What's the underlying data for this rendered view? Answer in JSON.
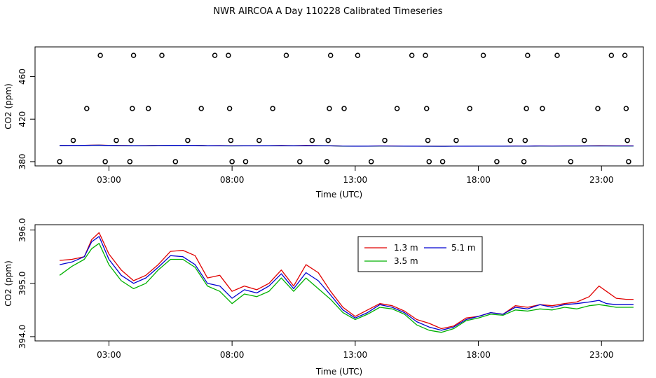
{
  "page_title": "NWR AIRCOA A  Day 110228  Calibrated Timeseries",
  "chart_data": [
    {
      "type": "scatter",
      "xlabel": "Time (UTC)",
      "ylabel": "CO2 (ppm)",
      "xlim": [
        0,
        24.7
      ],
      "ylim": [
        376,
        488
      ],
      "x_ticks": [
        3,
        8,
        13,
        18,
        23
      ],
      "x_tick_labels": [
        "03:00",
        "08:00",
        "13:00",
        "18:00",
        "23:00"
      ],
      "y_ticks": [
        380,
        420,
        460
      ],
      "y_tick_labels": [
        "380",
        "420",
        "460"
      ],
      "grid": false,
      "calibration_points": [
        {
          "x": 1.0,
          "y": 380
        },
        {
          "x": 1.55,
          "y": 400
        },
        {
          "x": 2.1,
          "y": 430
        },
        {
          "x": 2.65,
          "y": 480
        },
        {
          "x": 2.85,
          "y": 380
        },
        {
          "x": 3.3,
          "y": 400
        },
        {
          "x": 3.85,
          "y": 380
        },
        {
          "x": 3.9,
          "y": 400
        },
        {
          "x": 3.95,
          "y": 430
        },
        {
          "x": 4.0,
          "y": 480
        },
        {
          "x": 4.6,
          "y": 430
        },
        {
          "x": 5.15,
          "y": 480
        },
        {
          "x": 5.7,
          "y": 380
        },
        {
          "x": 6.2,
          "y": 400
        },
        {
          "x": 6.75,
          "y": 430
        },
        {
          "x": 7.3,
          "y": 480
        },
        {
          "x": 7.85,
          "y": 480
        },
        {
          "x": 7.9,
          "y": 430
        },
        {
          "x": 7.95,
          "y": 400
        },
        {
          "x": 8.0,
          "y": 380
        },
        {
          "x": 8.55,
          "y": 380
        },
        {
          "x": 9.1,
          "y": 400
        },
        {
          "x": 9.65,
          "y": 430
        },
        {
          "x": 10.2,
          "y": 480
        },
        {
          "x": 10.75,
          "y": 380
        },
        {
          "x": 11.25,
          "y": 400
        },
        {
          "x": 11.85,
          "y": 380
        },
        {
          "x": 11.9,
          "y": 400
        },
        {
          "x": 11.95,
          "y": 430
        },
        {
          "x": 12.0,
          "y": 480
        },
        {
          "x": 12.55,
          "y": 430
        },
        {
          "x": 13.1,
          "y": 480
        },
        {
          "x": 13.65,
          "y": 380
        },
        {
          "x": 14.2,
          "y": 400
        },
        {
          "x": 14.7,
          "y": 430
        },
        {
          "x": 15.3,
          "y": 480
        },
        {
          "x": 15.85,
          "y": 480
        },
        {
          "x": 15.9,
          "y": 430
        },
        {
          "x": 15.95,
          "y": 400
        },
        {
          "x": 16.0,
          "y": 380
        },
        {
          "x": 16.55,
          "y": 380
        },
        {
          "x": 17.1,
          "y": 400
        },
        {
          "x": 17.65,
          "y": 430
        },
        {
          "x": 18.2,
          "y": 480
        },
        {
          "x": 18.75,
          "y": 380
        },
        {
          "x": 19.3,
          "y": 400
        },
        {
          "x": 19.85,
          "y": 380
        },
        {
          "x": 19.9,
          "y": 400
        },
        {
          "x": 19.95,
          "y": 430
        },
        {
          "x": 20.0,
          "y": 480
        },
        {
          "x": 20.6,
          "y": 430
        },
        {
          "x": 21.2,
          "y": 480
        },
        {
          "x": 21.75,
          "y": 380
        },
        {
          "x": 22.3,
          "y": 400
        },
        {
          "x": 22.85,
          "y": 430
        },
        {
          "x": 23.4,
          "y": 480
        },
        {
          "x": 23.95,
          "y": 480
        },
        {
          "x": 24.0,
          "y": 430
        },
        {
          "x": 24.05,
          "y": 400
        },
        {
          "x": 24.1,
          "y": 380
        }
      ],
      "ambient_level": 395
    },
    {
      "type": "line",
      "xlabel": "Time (UTC)",
      "ylabel": "CO2 (ppm)",
      "xlim": [
        0,
        24.7
      ],
      "ylim": [
        393.92,
        396.1
      ],
      "x_ticks": [
        3,
        8,
        13,
        18,
        23
      ],
      "x_tick_labels": [
        "03:00",
        "08:00",
        "13:00",
        "18:00",
        "23:00"
      ],
      "y_ticks": [
        394.0,
        395.0,
        396.0
      ],
      "y_tick_labels": [
        "394.0",
        "395.0",
        "396.0"
      ],
      "grid": false,
      "legend_position": "top-right",
      "series": [
        {
          "name": "1.3 m",
          "color": "#e00000",
          "x": [
            1.0,
            1.5,
            2.0,
            2.3,
            2.6,
            3.0,
            3.5,
            4.0,
            4.5,
            5.0,
            5.5,
            6.0,
            6.5,
            7.0,
            7.5,
            8.0,
            8.5,
            9.0,
            9.5,
            10.0,
            10.5,
            11.0,
            11.5,
            12.0,
            12.5,
            13.0,
            13.5,
            14.0,
            14.5,
            15.0,
            15.5,
            16.0,
            16.5,
            17.0,
            17.5,
            18.0,
            18.5,
            19.0,
            19.5,
            20.0,
            20.5,
            21.0,
            21.5,
            22.0,
            22.5,
            22.9,
            23.2,
            23.6,
            24.0,
            24.3
          ],
          "values": [
            395.43,
            395.45,
            395.5,
            395.82,
            395.95,
            395.55,
            395.25,
            395.05,
            395.15,
            395.35,
            395.6,
            395.62,
            395.52,
            395.1,
            395.15,
            394.85,
            394.95,
            394.88,
            395.0,
            395.25,
            394.95,
            395.35,
            395.2,
            394.85,
            394.55,
            394.38,
            394.5,
            394.62,
            394.58,
            394.48,
            394.32,
            394.25,
            394.15,
            394.2,
            394.35,
            394.38,
            394.45,
            394.42,
            394.58,
            394.55,
            394.6,
            394.58,
            394.62,
            394.65,
            394.75,
            394.95,
            394.85,
            394.72,
            394.7,
            394.7
          ]
        },
        {
          "name": "3.5 m",
          "color": "#00b000",
          "x": [
            1.0,
            1.5,
            2.0,
            2.3,
            2.6,
            3.0,
            3.5,
            4.0,
            4.5,
            5.0,
            5.5,
            6.0,
            6.5,
            7.0,
            7.5,
            8.0,
            8.5,
            9.0,
            9.5,
            10.0,
            10.5,
            11.0,
            11.5,
            12.0,
            12.5,
            13.0,
            13.5,
            14.0,
            14.5,
            15.0,
            15.5,
            16.0,
            16.5,
            17.0,
            17.5,
            18.0,
            18.5,
            19.0,
            19.5,
            20.0,
            20.5,
            21.0,
            21.5,
            22.0,
            22.5,
            22.9,
            23.2,
            23.6,
            24.0,
            24.3
          ],
          "values": [
            395.15,
            395.32,
            395.45,
            395.65,
            395.75,
            395.35,
            395.05,
            394.9,
            395.0,
            395.25,
            395.45,
            395.45,
            395.3,
            394.95,
            394.85,
            394.62,
            394.8,
            394.75,
            394.85,
            395.1,
            394.85,
            395.1,
            394.9,
            394.7,
            394.45,
            394.32,
            394.42,
            394.55,
            394.52,
            394.42,
            394.22,
            394.12,
            394.08,
            394.15,
            394.3,
            394.35,
            394.42,
            394.4,
            394.5,
            394.48,
            394.52,
            394.5,
            394.55,
            394.52,
            394.58,
            394.6,
            394.58,
            394.55,
            394.55,
            394.55
          ]
        },
        {
          "name": "5.1 m",
          "color": "#0000d0",
          "x": [
            1.0,
            1.5,
            2.0,
            2.3,
            2.6,
            3.0,
            3.5,
            4.0,
            4.5,
            5.0,
            5.5,
            6.0,
            6.5,
            7.0,
            7.5,
            8.0,
            8.5,
            9.0,
            9.5,
            10.0,
            10.5,
            11.0,
            11.5,
            12.0,
            12.5,
            13.0,
            13.5,
            14.0,
            14.5,
            15.0,
            15.5,
            16.0,
            16.5,
            17.0,
            17.5,
            18.0,
            18.5,
            19.0,
            19.5,
            20.0,
            20.5,
            21.0,
            21.5,
            22.0,
            22.5,
            22.9,
            23.2,
            23.6,
            24.0,
            24.3
          ],
          "values": [
            395.35,
            395.4,
            395.5,
            395.78,
            395.88,
            395.45,
            395.15,
            395.0,
            395.1,
            395.3,
            395.52,
            395.5,
            395.35,
            395.0,
            394.95,
            394.72,
            394.88,
            394.82,
            394.95,
            395.18,
            394.9,
            395.2,
            395.05,
            394.78,
            394.5,
            394.35,
            394.45,
            394.6,
            394.55,
            394.45,
            394.28,
            394.18,
            394.12,
            394.18,
            394.32,
            394.38,
            394.45,
            394.42,
            394.55,
            394.52,
            394.6,
            394.55,
            394.6,
            394.62,
            394.65,
            394.68,
            394.62,
            394.6,
            394.6,
            394.6
          ]
        }
      ]
    }
  ]
}
